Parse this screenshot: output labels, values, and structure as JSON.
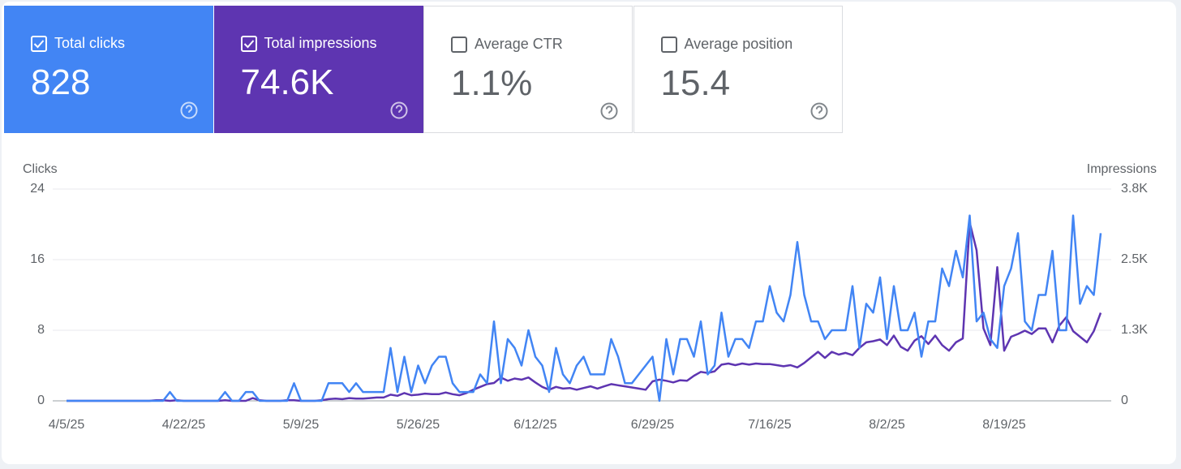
{
  "cards": [
    {
      "label": "Total clicks",
      "value": "828",
      "checked": true,
      "color": "#4285f4"
    },
    {
      "label": "Total impressions",
      "value": "74.6K",
      "checked": true,
      "color": "#5e35b1"
    },
    {
      "label": "Average CTR",
      "value": "1.1%",
      "checked": false,
      "color": "#ffffff"
    },
    {
      "label": "Average position",
      "value": "15.4",
      "checked": false,
      "color": "#ffffff"
    }
  ],
  "chart_data": {
    "type": "line",
    "ylabel": "Clicks",
    "y2label": "Impressions",
    "categories": [
      "4/5/25",
      null,
      null,
      null,
      null,
      null,
      null,
      null,
      null,
      null,
      null,
      null,
      null,
      null,
      null,
      null,
      null,
      "4/22/25",
      null,
      null,
      null,
      null,
      null,
      null,
      null,
      null,
      null,
      null,
      null,
      null,
      null,
      null,
      null,
      null,
      "5/9/25",
      null,
      null,
      null,
      null,
      null,
      null,
      null,
      null,
      null,
      null,
      null,
      null,
      null,
      null,
      null,
      null,
      "5/26/25",
      null,
      null,
      null,
      null,
      null,
      null,
      null,
      null,
      null,
      null,
      null,
      null,
      null,
      null,
      null,
      null,
      "6/12/25",
      null,
      null,
      null,
      null,
      null,
      null,
      null,
      null,
      null,
      null,
      null,
      null,
      null,
      null,
      null,
      null,
      "6/29/25",
      null,
      null,
      null,
      null,
      null,
      null,
      null,
      null,
      null,
      null,
      null,
      null,
      null,
      null,
      null,
      null,
      "7/16/25",
      null,
      null,
      null,
      null,
      null,
      null,
      null,
      null,
      null,
      null,
      null,
      null,
      null,
      null,
      null,
      null,
      "8/2/25",
      null,
      null,
      null,
      null,
      null,
      null,
      null,
      null,
      null,
      null,
      null,
      null,
      null,
      null,
      null,
      null,
      "8/19/25",
      null,
      null,
      null,
      null,
      null,
      null,
      null,
      null,
      null,
      null,
      null,
      null,
      null,
      null
    ],
    "series": [
      {
        "name": "Impressions",
        "color": "#5e35b1",
        "axis": "y2",
        "values": [
          0,
          0,
          0,
          0,
          0,
          0,
          0,
          0,
          0,
          0,
          0,
          0,
          0,
          10,
          10,
          0,
          10,
          0,
          0,
          0,
          0,
          0,
          0,
          10,
          0,
          0,
          0,
          50,
          10,
          0,
          0,
          0,
          10,
          10,
          0,
          0,
          0,
          10,
          30,
          40,
          30,
          50,
          40,
          40,
          50,
          60,
          60,
          110,
          90,
          140,
          100,
          110,
          130,
          120,
          120,
          150,
          120,
          100,
          140,
          200,
          250,
          300,
          320,
          420,
          360,
          400,
          380,
          420,
          330,
          250,
          200,
          250,
          220,
          230,
          200,
          230,
          260,
          220,
          260,
          300,
          280,
          260,
          240,
          220,
          200,
          350,
          380,
          360,
          330,
          370,
          360,
          450,
          520,
          500,
          530,
          650,
          670,
          640,
          670,
          650,
          670,
          660,
          660,
          640,
          620,
          640,
          600,
          680,
          780,
          880,
          770,
          880,
          830,
          860,
          820,
          950,
          1050,
          1070,
          1100,
          1000,
          1170,
          970,
          900,
          1080,
          1160,
          1020,
          1170,
          1000,
          900,
          1050,
          1120,
          3200,
          2700,
          1300,
          1000,
          2400,
          900,
          1150,
          1200,
          1260,
          1200,
          1300,
          1300,
          1050,
          1350,
          1500,
          1250,
          1150,
          1050,
          1250,
          1580
        ]
      },
      {
        "name": "Clicks",
        "color": "#4285f4",
        "values": [
          0,
          0,
          0,
          0,
          0,
          0,
          0,
          0,
          0,
          0,
          0,
          0,
          0,
          0,
          0,
          1,
          0,
          0,
          0,
          0,
          0,
          0,
          0,
          1,
          0,
          0,
          1,
          1,
          0,
          0,
          0,
          0,
          0,
          2,
          0,
          0,
          0,
          0,
          2,
          2,
          2,
          1,
          2,
          1,
          1,
          1,
          1,
          6,
          1,
          5,
          1,
          4,
          2,
          4,
          5,
          5,
          2,
          1,
          1,
          1,
          3,
          2,
          9,
          2,
          7,
          6,
          4,
          8,
          5,
          4,
          1,
          6,
          3,
          2,
          4,
          5,
          3,
          3,
          3,
          7,
          5,
          2,
          2,
          3,
          4,
          5,
          0,
          7,
          3,
          7,
          7,
          5,
          9,
          3,
          4,
          10,
          5,
          7,
          7,
          6,
          9,
          9,
          13,
          10,
          9,
          12,
          18,
          12,
          9,
          9,
          7,
          8,
          8,
          8,
          13,
          6,
          11,
          10,
          14,
          7,
          13,
          8,
          8,
          10,
          5,
          9,
          9,
          15,
          13,
          17,
          14,
          21,
          9,
          10,
          7,
          6,
          13,
          15,
          19,
          9,
          8,
          12,
          12,
          17,
          8,
          8,
          21,
          11,
          13,
          12,
          19
        ]
      }
    ],
    "ylim": [
      0,
      24
    ],
    "yticks": [
      0,
      8,
      16,
      24
    ],
    "y2lim": [
      0,
      3800
    ],
    "y2ticks": [
      0,
      {
        "value": 1267,
        "label": "1.3K"
      },
      {
        "value": 2533,
        "label": "2.5K"
      },
      {
        "value": 3800,
        "label": "3.8K"
      }
    ],
    "grid": true
  }
}
